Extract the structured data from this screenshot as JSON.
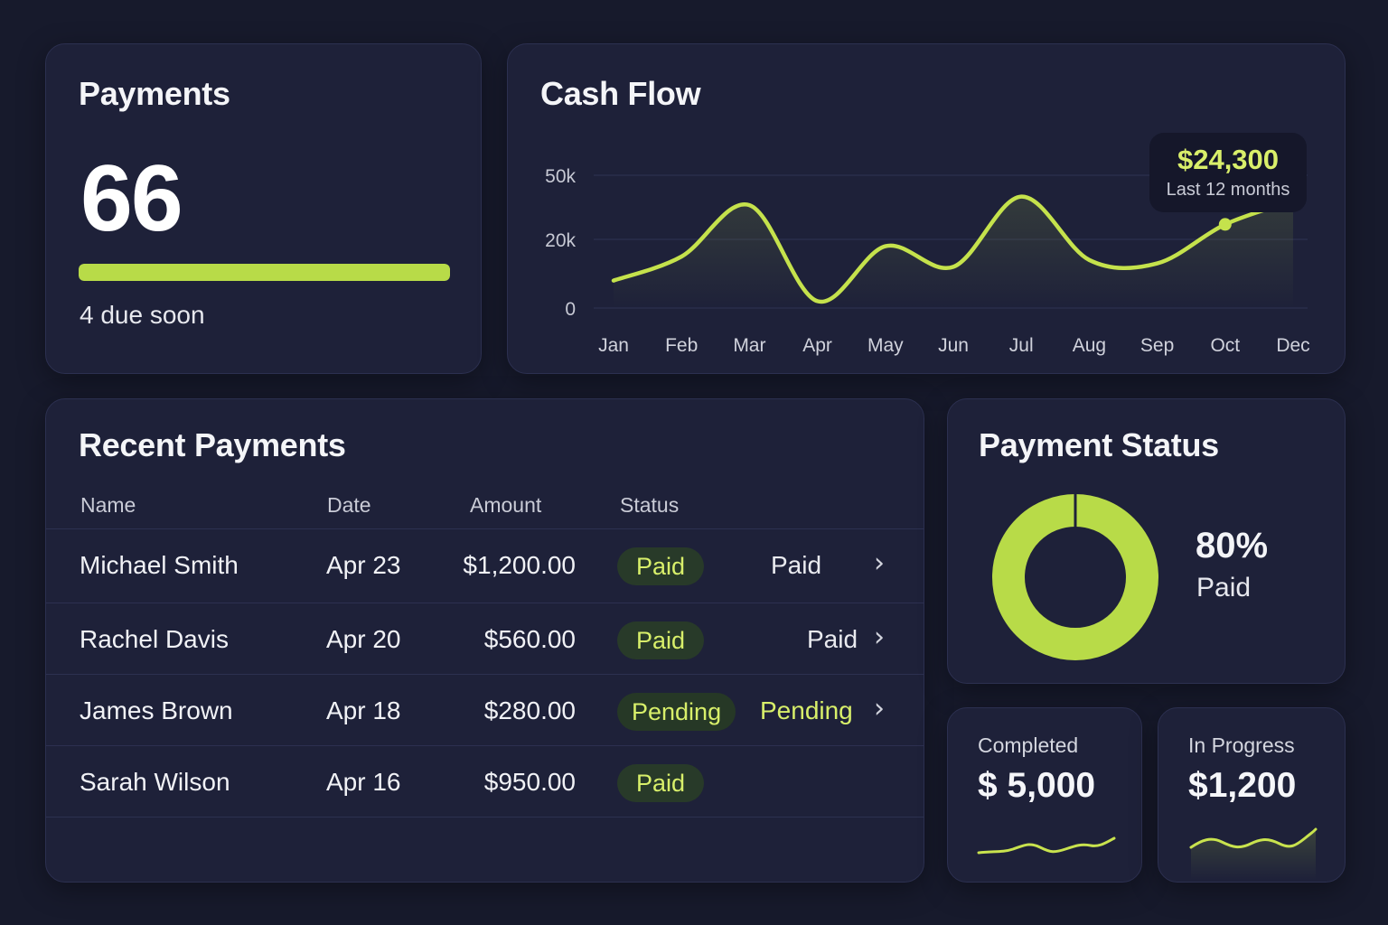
{
  "colors": {
    "accent": "#b8db48",
    "background": "#171a2c",
    "card": "#1e2139"
  },
  "payments": {
    "title": "Payments",
    "count": "66",
    "progress_fraction": 1.0,
    "due_text": "4 due soon"
  },
  "cash_flow": {
    "title": "Cash Flow",
    "tooltip_amount": "$24,300",
    "tooltip_label": "Last 12 months"
  },
  "chart_data": {
    "type": "line",
    "title": "Cash Flow",
    "x": [
      "Jan",
      "Feb",
      "Mar",
      "Apr",
      "May",
      "Jun",
      "Jul",
      "Aug",
      "Sep",
      "Oct",
      "Dec"
    ],
    "y_ticks": [
      "50k",
      "20k",
      "0"
    ],
    "ylim": [
      0,
      50000
    ],
    "series": [
      {
        "values": [
          8000,
          15000,
          36000,
          2000,
          18000,
          12000,
          40000,
          14000,
          13000,
          27000,
          38000
        ]
      }
    ],
    "grid": true,
    "legend": "none"
  },
  "recent": {
    "title": "Recent Payments",
    "headers": {
      "name": "Name",
      "date": "Date",
      "amount": "Amount",
      "status": "Status"
    },
    "rows": [
      {
        "name": "Michael Smith",
        "date": "Apr 23",
        "amount": "$1,200.00",
        "badge": "Paid",
        "status_text": "Paid",
        "chevron": "›"
      },
      {
        "name": "Rachel Davis",
        "date": "Apr 20",
        "amount": "$560.00",
        "badge": "Paid",
        "status_text": "Paid",
        "chevron": "›"
      },
      {
        "name": "James Brown",
        "date": "Apr 18",
        "amount": "$280.00",
        "badge": "Pending",
        "status_text": "Pending",
        "chevron": "›"
      },
      {
        "name": "Sarah Wilson",
        "date": "Apr 16",
        "amount": "$950.00",
        "badge": "Paid"
      }
    ]
  },
  "payment_status": {
    "title": "Payment Status",
    "percent": "80%",
    "label": "Paid",
    "paid_fraction": 0.8
  },
  "completed": {
    "label": "Completed",
    "value": "$ 5,000"
  },
  "in_progress": {
    "label": "In Progress",
    "value": "$1,200"
  }
}
